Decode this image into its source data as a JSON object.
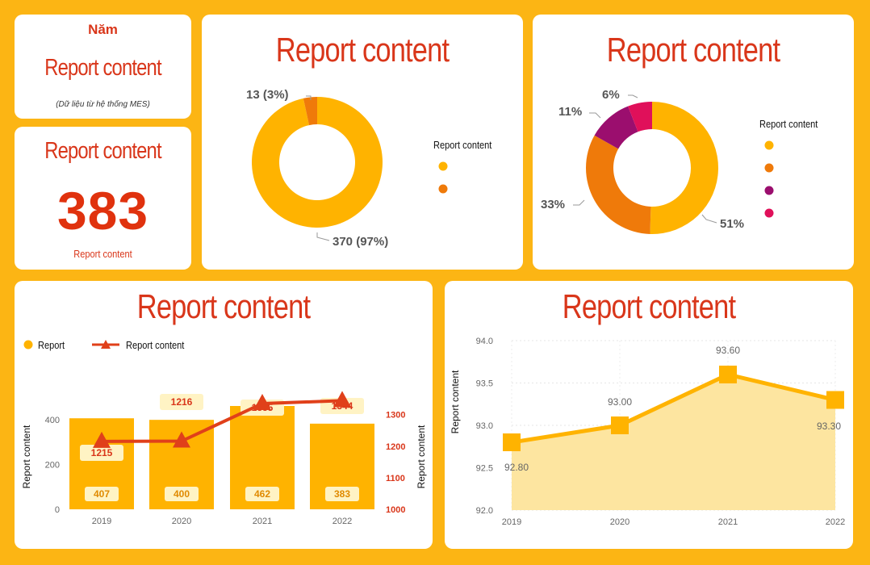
{
  "header_card": {
    "year_label": "Năm",
    "title": "Report content",
    "source_note": "(Dữ liệu từ hệ thống MES)"
  },
  "kpi_card": {
    "title": "Report content",
    "value": "383",
    "caption": "Report content"
  },
  "colors": {
    "amber": "#FFB300",
    "orange": "#EF7A0A",
    "purple": "#9B0E6E",
    "crimson": "#E0105A",
    "red": "#D9361A",
    "background": "#FCB514",
    "area_fill": "#FDE5A0"
  },
  "chart_data": [
    {
      "id": "donut-1",
      "type": "pie",
      "title": "Report content",
      "legend_title": "Report content",
      "legend_position": "right",
      "slices": [
        {
          "value": 370,
          "label": "370 (97%)",
          "color": "#FFB300"
        },
        {
          "value": 13,
          "label": "13 (3%)",
          "color": "#EF7A0A"
        }
      ]
    },
    {
      "id": "donut-2",
      "type": "pie",
      "title": "Report content",
      "legend_title": "Report content",
      "legend_position": "right",
      "slices": [
        {
          "value": 51,
          "label": "51%",
          "color": "#FFB300"
        },
        {
          "value": 33,
          "label": "33%",
          "color": "#EF7A0A"
        },
        {
          "value": 11,
          "label": "11%",
          "color": "#9B0E6E"
        },
        {
          "value": 6,
          "label": "6%",
          "color": "#E0105A"
        }
      ]
    },
    {
      "id": "combo",
      "type": "bar",
      "title": "Report content",
      "categories": [
        "2019",
        "2020",
        "2021",
        "2022"
      ],
      "legend_position": "top-left",
      "series": [
        {
          "name": "Report",
          "type": "bar",
          "axis": "left",
          "values": [
            407,
            400,
            462,
            383
          ],
          "labels": [
            "407",
            "400",
            "462",
            "383"
          ],
          "color": "#FFB300"
        },
        {
          "name": "Report content",
          "type": "line",
          "axis": "right",
          "values": [
            1215,
            1216,
            1335,
            1344
          ],
          "labels": [
            "1215",
            "1216",
            "1335",
            "1344"
          ],
          "color": "#E0401A"
        }
      ],
      "y_left": {
        "label": "Report content",
        "ticks": [
          "0",
          "200",
          "400"
        ],
        "range": [
          0,
          480
        ]
      },
      "y_right": {
        "label": "Report content",
        "ticks": [
          "1000",
          "1100",
          "1200",
          "1300"
        ],
        "range": [
          1000,
          1340
        ]
      }
    },
    {
      "id": "area",
      "type": "area",
      "title": "Report content",
      "categories": [
        "2019",
        "2020",
        "2021",
        "2022"
      ],
      "values": [
        92.8,
        93.0,
        93.6,
        93.3
      ],
      "labels": [
        "92.80",
        "93.00",
        "93.60",
        "93.30"
      ],
      "y": {
        "label": "Report content",
        "ticks": [
          "92.0",
          "92.5",
          "93.0",
          "93.5",
          "94.0"
        ],
        "range": [
          92.0,
          94.0
        ]
      },
      "grid": true
    }
  ]
}
